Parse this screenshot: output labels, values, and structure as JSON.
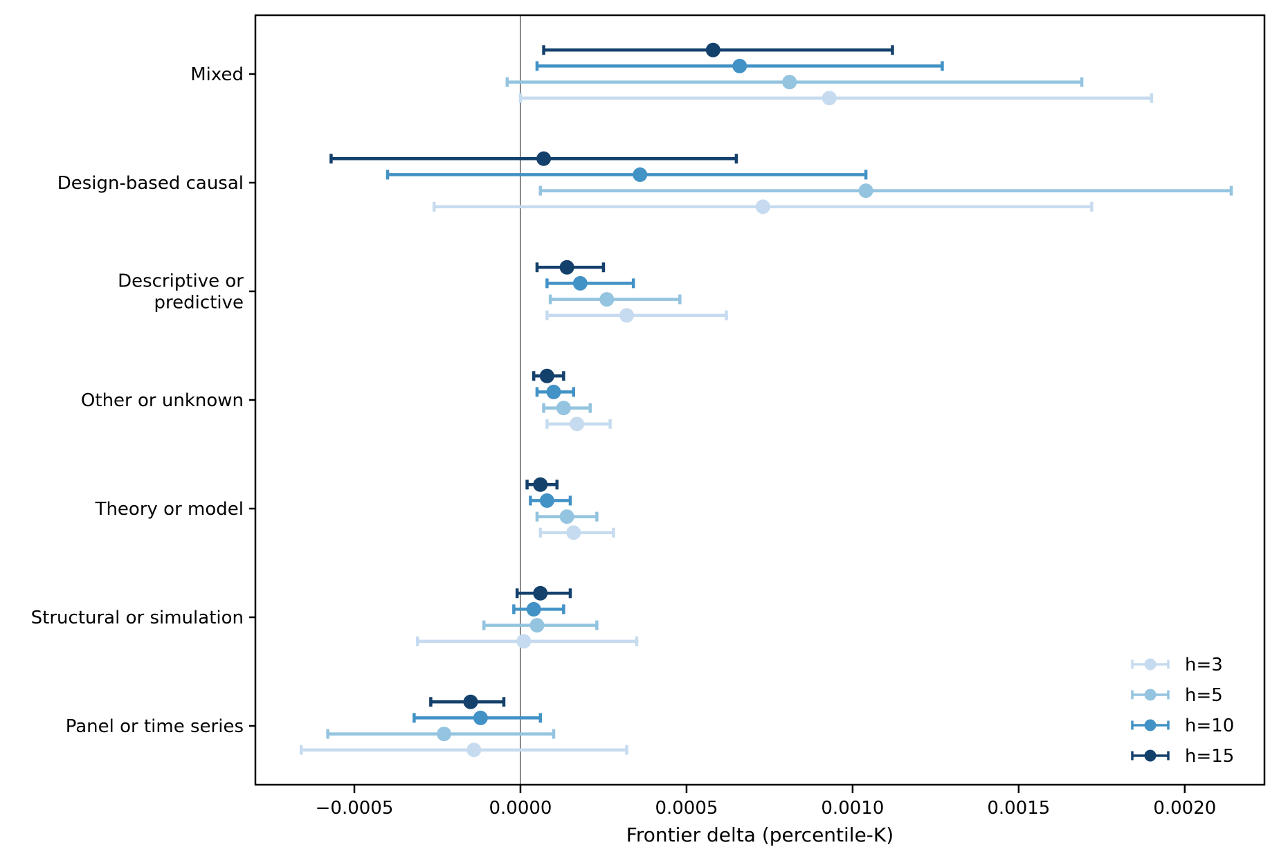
{
  "figure": {
    "background": "#ffffff",
    "axis_color": "#000000",
    "zero_line_color": "#8a8a8a"
  },
  "chart_data": {
    "type": "scatter",
    "subtype": "horizontal-errorbar-dot-plot",
    "title": "",
    "xlabel": "Frontier delta (percentile-K)",
    "ylabel": "",
    "grid": "off",
    "xlim": [
      -0.000798,
      0.00224
    ],
    "x_ticks": {
      "values": [
        -0.0005,
        0.0,
        0.0005,
        0.001,
        0.0015,
        0.002
      ],
      "labels": [
        "−0.0005",
        "0.0000",
        "0.0005",
        "0.0010",
        "0.0015",
        "0.0020"
      ]
    },
    "zero_line": {
      "x": 0
    },
    "categories": [
      "Mixed",
      "Design-based causal",
      "Descriptive or\npredictive",
      "Other or unknown",
      "Theory or model",
      "Structural or simulation",
      "Panel or time series"
    ],
    "series": [
      {
        "name": "h=3",
        "color": "#c6dbef",
        "x": [
          0.00093,
          0.00073,
          0.00032,
          0.00017,
          0.00016,
          1e-05,
          -0.00014
        ],
        "ci_low": [
          0.0,
          -0.00026,
          8e-05,
          8e-05,
          6e-05,
          -0.00031,
          -0.00066
        ],
        "ci_high": [
          0.0019,
          0.00172,
          0.00062,
          0.00027,
          0.00028,
          0.00035,
          0.00032
        ]
      },
      {
        "name": "h=5",
        "color": "#94c4df",
        "x": [
          0.00081,
          0.00104,
          0.00026,
          0.00013,
          0.00014,
          5e-05,
          -0.00023
        ],
        "ci_low": [
          -4e-05,
          6e-05,
          9e-05,
          7e-05,
          5e-05,
          -0.00011,
          -0.00058
        ],
        "ci_high": [
          0.00169,
          0.00214,
          0.00048,
          0.00021,
          0.00023,
          0.00023,
          0.0001
        ]
      },
      {
        "name": "h=10",
        "color": "#4292c6",
        "x": [
          0.00066,
          0.00036,
          0.00018,
          0.0001,
          8e-05,
          4e-05,
          -0.00012
        ],
        "ci_low": [
          5e-05,
          -0.0004,
          8e-05,
          5e-05,
          3e-05,
          -2e-05,
          -0.00032
        ],
        "ci_high": [
          0.00127,
          0.00104,
          0.00034,
          0.00016,
          0.00015,
          0.00013,
          6e-05
        ]
      },
      {
        "name": "h=15",
        "color": "#14406c",
        "x": [
          0.00058,
          7e-05,
          0.00014,
          8e-05,
          6e-05,
          6e-05,
          -0.00015
        ],
        "ci_low": [
          7e-05,
          -0.00057,
          5e-05,
          4e-05,
          2e-05,
          -1e-05,
          -0.00027
        ],
        "ci_high": [
          0.00112,
          0.00065,
          0.00025,
          0.00013,
          0.00011,
          0.00015,
          -5e-05
        ]
      }
    ],
    "legend": {
      "position": "lower right",
      "frame": "off",
      "items": [
        {
          "label": "h=3",
          "color": "#c6dbef"
        },
        {
          "label": "h=5",
          "color": "#94c4df"
        },
        {
          "label": "h=10",
          "color": "#4292c6"
        },
        {
          "label": "h=15",
          "color": "#14406c"
        }
      ]
    }
  }
}
